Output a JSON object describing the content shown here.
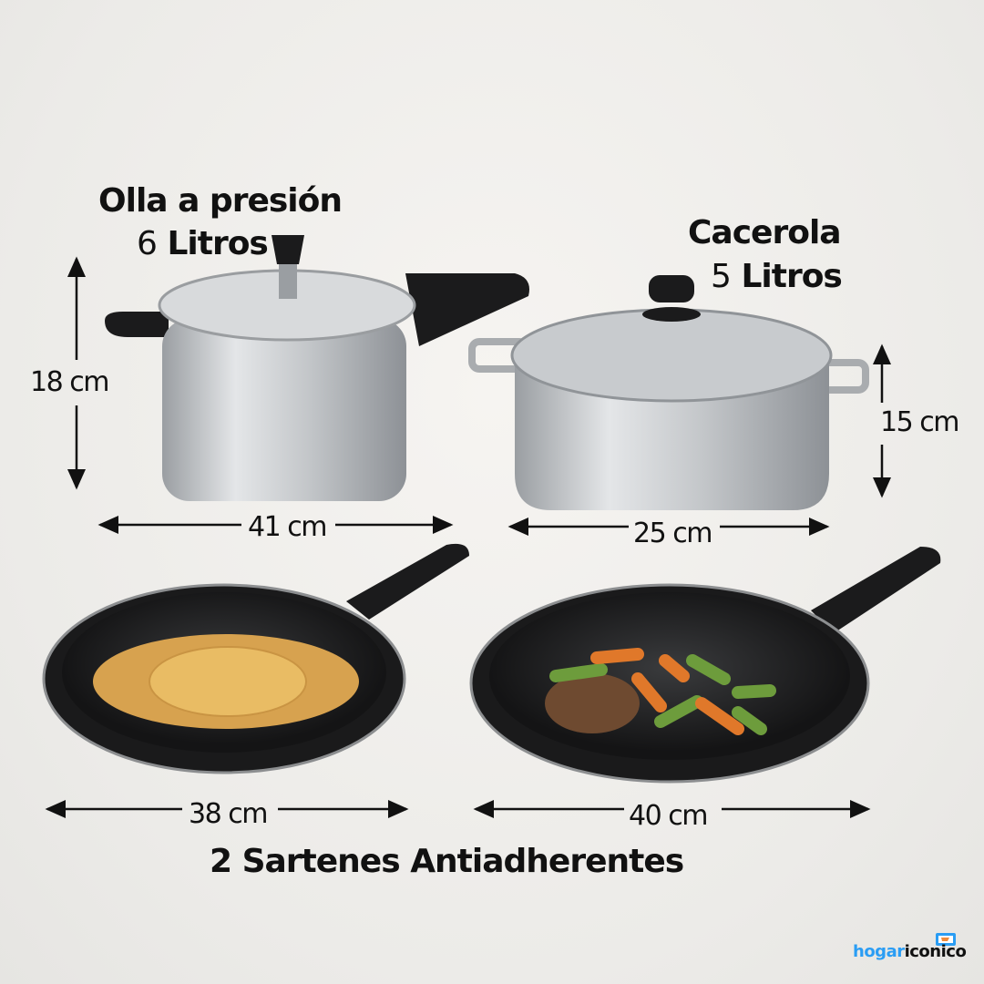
{
  "products": {
    "pressure_cooker": {
      "name": "Olla a presión",
      "capacity_number": "6",
      "capacity_unit": "Litros",
      "height": "18 cm",
      "width": "41 cm"
    },
    "casserole": {
      "name": "Cacerola",
      "capacity_number": "5",
      "capacity_unit": "Litros",
      "height": "15 cm",
      "width": "25 cm"
    },
    "pan_small": {
      "width": "38 cm"
    },
    "pan_large": {
      "width": "40 cm"
    },
    "pans_title": "2 Sartenes Antiadherentes"
  },
  "brand": {
    "part1": "hogar",
    "part2": "iconico",
    "color1": "#2a9df4",
    "color2": "#111111"
  }
}
